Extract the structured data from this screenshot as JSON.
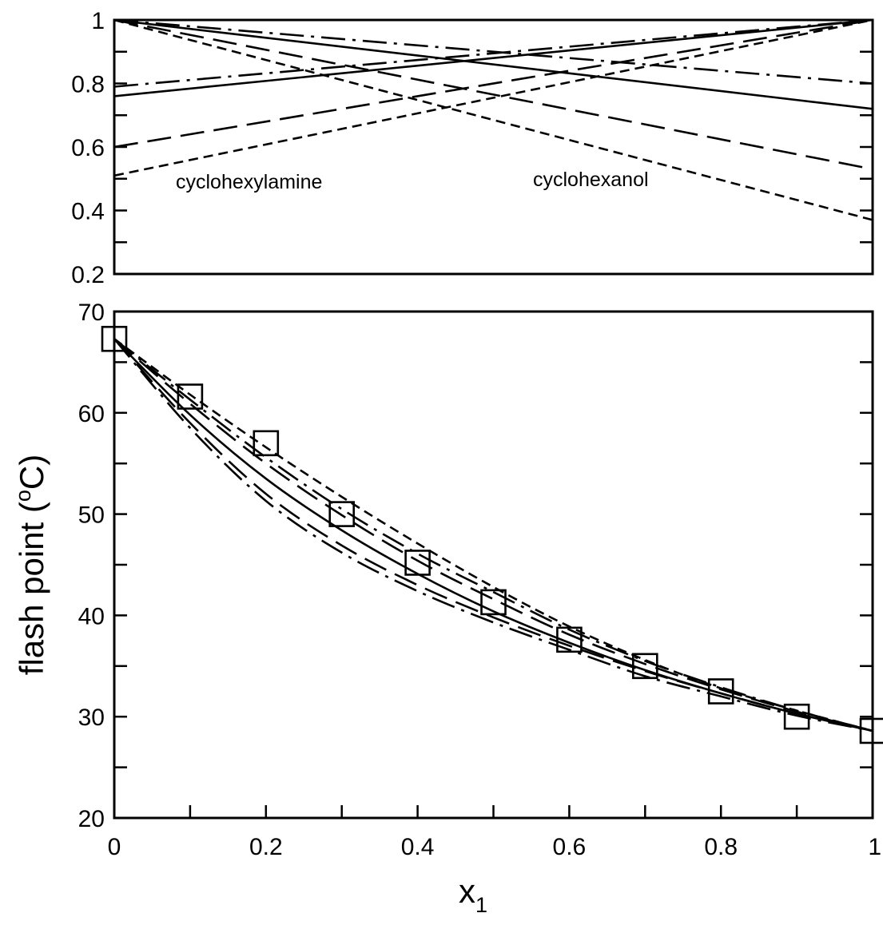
{
  "chart_data": [
    {
      "type": "line",
      "title": "",
      "xlabel": "",
      "ylabel": "",
      "xlim": [
        0,
        1
      ],
      "ylim": [
        0.2,
        1
      ],
      "y_ticks": [
        {
          "value": 1,
          "label": "1"
        },
        {
          "value": 0.8,
          "label": "0.8"
        },
        {
          "value": 0.6,
          "label": "0.6"
        },
        {
          "value": 0.4,
          "label": "0.4"
        },
        {
          "value": 0.2,
          "label": "0.2"
        }
      ],
      "annotations": [
        {
          "text": "cyclohexylamine",
          "x": 0.2,
          "y": 0.49
        },
        {
          "text": "cyclohexanol",
          "x": 0.7,
          "y": 0.49
        }
      ],
      "series": [
        {
          "style": "solid",
          "x": [
            0,
            1
          ],
          "y": [
            0.76,
            1
          ]
        },
        {
          "style": "solid",
          "x": [
            0,
            1
          ],
          "y": [
            1,
            0.72
          ]
        },
        {
          "style": "dash-dot",
          "x": [
            0,
            1
          ],
          "y": [
            0.79,
            1
          ]
        },
        {
          "style": "dash-dot",
          "x": [
            0,
            1
          ],
          "y": [
            1,
            0.8
          ]
        },
        {
          "style": "long-dash",
          "x": [
            0,
            1
          ],
          "y": [
            0.6,
            1
          ]
        },
        {
          "style": "long-dash",
          "x": [
            0,
            1
          ],
          "y": [
            1,
            0.53
          ]
        },
        {
          "style": "short-dash",
          "x": [
            0,
            1
          ],
          "y": [
            0.51,
            1
          ]
        },
        {
          "style": "short-dash",
          "x": [
            0,
            1
          ],
          "y": [
            1,
            0.37
          ]
        }
      ]
    },
    {
      "type": "scatter",
      "title": "",
      "xlabel": "x",
      "xlabel_sub": "1",
      "ylabel_pre": "flash point (",
      "ylabel_sup": "o",
      "ylabel_post": "C)",
      "xlim": [
        0,
        1
      ],
      "ylim": [
        20,
        70
      ],
      "x_ticks": [
        {
          "value": 0,
          "label": "0"
        },
        {
          "value": 0.2,
          "label": "0.2"
        },
        {
          "value": 0.4,
          "label": "0.4"
        },
        {
          "value": 0.6,
          "label": "0.6"
        },
        {
          "value": 0.8,
          "label": "0.8"
        },
        {
          "value": 1,
          "label": "1"
        }
      ],
      "y_ticks": [
        {
          "value": 70,
          "label": "70"
        },
        {
          "value": 60,
          "label": "60"
        },
        {
          "value": 50,
          "label": "50"
        },
        {
          "value": 40,
          "label": "40"
        },
        {
          "value": 30,
          "label": "30"
        },
        {
          "value": 20,
          "label": "20"
        }
      ],
      "points": {
        "marker": "open-square",
        "x": [
          0,
          0.1,
          0.2,
          0.3,
          0.4,
          0.5,
          0.6,
          0.7,
          0.8,
          0.9,
          1.0
        ],
        "y": [
          67.3,
          61.6,
          57.0,
          50.0,
          45.2,
          41.3,
          37.6,
          35.0,
          32.5,
          30.0,
          28.6
        ]
      },
      "series": [
        {
          "style": "solid",
          "x": [
            0,
            0.1,
            0.2,
            0.3,
            0.4,
            0.5,
            0.6,
            0.7,
            0.8,
            0.9,
            1.0
          ],
          "y": [
            67.3,
            59.8,
            53.5,
            48.4,
            44.1,
            40.4,
            37.3,
            34.6,
            32.3,
            30.3,
            28.6
          ]
        },
        {
          "style": "dash-dot",
          "x": [
            0,
            0.1,
            0.2,
            0.3,
            0.4,
            0.5,
            0.6,
            0.7,
            0.8,
            0.9,
            1.0
          ],
          "y": [
            67.3,
            58.5,
            51.3,
            46.2,
            42.4,
            39.3,
            36.6,
            34.0,
            32.0,
            30.1,
            28.6
          ]
        },
        {
          "style": "long-dash",
          "x": [
            0,
            0.1,
            0.2,
            0.3,
            0.4,
            0.5,
            0.6,
            0.7,
            0.8,
            0.9,
            1.0
          ],
          "y": [
            67.3,
            59.0,
            52.0,
            46.9,
            43.0,
            39.8,
            37.0,
            34.5,
            32.3,
            30.3,
            28.6
          ]
        },
        {
          "style": "short-dash",
          "x": [
            0,
            0.1,
            0.2,
            0.3,
            0.4,
            0.5,
            0.6,
            0.7,
            0.8,
            0.9,
            1.0
          ],
          "y": [
            67.3,
            61.8,
            56.6,
            51.7,
            47.1,
            42.8,
            38.9,
            35.6,
            32.8,
            30.6,
            28.6
          ]
        },
        {
          "style": "dash-dot",
          "x": [
            0,
            0.1,
            0.2,
            0.3,
            0.4,
            0.5,
            0.6,
            0.7,
            0.8,
            0.9,
            1.0
          ],
          "y": [
            67.3,
            61.3,
            55.6,
            50.5,
            46.1,
            42.3,
            38.6,
            35.5,
            32.9,
            30.6,
            28.6
          ]
        },
        {
          "style": "long-dash",
          "x": [
            0,
            0.1,
            0.2,
            0.3,
            0.4,
            0.5,
            0.6,
            0.7,
            0.8,
            0.9,
            1.0
          ],
          "y": [
            67.3,
            60.9,
            55.0,
            49.9,
            45.4,
            41.6,
            38.1,
            35.2,
            32.7,
            30.5,
            28.6
          ]
        }
      ]
    }
  ]
}
